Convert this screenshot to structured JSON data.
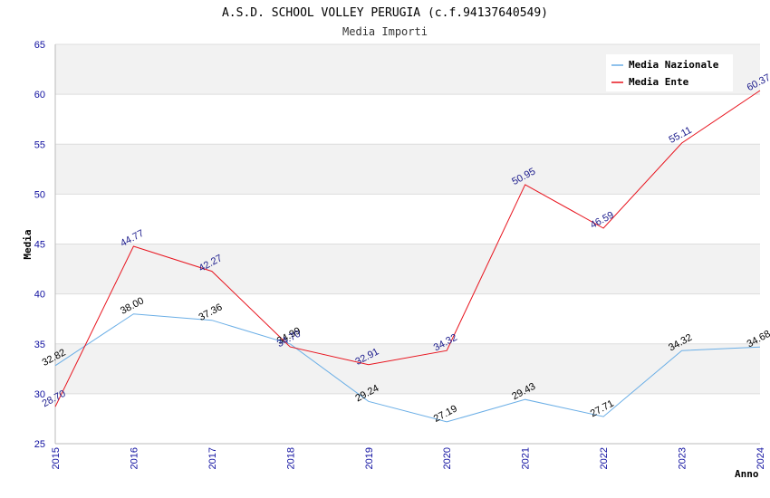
{
  "chart_data": {
    "type": "line",
    "title": "A.S.D. SCHOOL VOLLEY PERUGIA (c.f.94137640549)",
    "subtitle": "Media Importi",
    "xlabel": "Anno",
    "ylabel": "Media",
    "ylim": [
      25,
      65
    ],
    "yticks": [
      25,
      30,
      35,
      40,
      45,
      50,
      55,
      60,
      65
    ],
    "categories": [
      "2015",
      "2016",
      "2017",
      "2018",
      "2019",
      "2020",
      "2021",
      "2022",
      "2023",
      "2024"
    ],
    "series": [
      {
        "name": "Media Nazionale",
        "color": "#6aaee6",
        "values": [
          32.82,
          38.0,
          37.36,
          34.99,
          29.24,
          27.19,
          29.43,
          27.71,
          34.32,
          34.68
        ],
        "labels": [
          "32.82",
          "38.00",
          "37.36",
          "34.99",
          "29.24",
          "27.19",
          "29.43",
          "27.71",
          "34.32",
          "34.68"
        ]
      },
      {
        "name": "Media Ente",
        "color": "#e8141e",
        "values": [
          28.7,
          44.77,
          42.27,
          34.7,
          32.91,
          34.32,
          50.95,
          46.59,
          55.11,
          60.37
        ],
        "labels": [
          "28.70",
          "44.77",
          "42.27",
          "34.70",
          "32.91",
          "34.32",
          "50.95",
          "46.59",
          "55.11",
          "60.37"
        ]
      }
    ],
    "legend_position": "top-right",
    "grid": true,
    "band_color": "#f2f2f2",
    "grid_color": "#dddddd"
  }
}
